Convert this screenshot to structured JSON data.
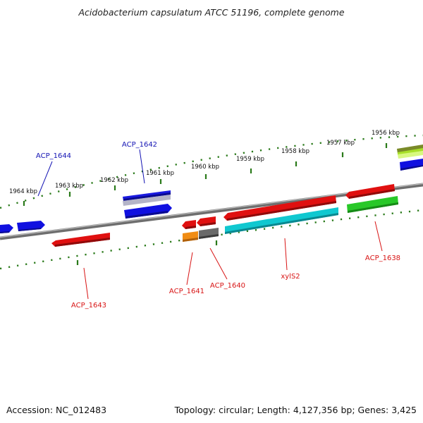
{
  "title": "Acidobacterium capsulatum ATCC 51196, complete genome",
  "footer": {
    "accession": "Accession: NC_012483",
    "summary": "Topology: circular; Length: 4,127,356 bp; Genes: 3,425"
  },
  "colors": {
    "backbone": "#7a7a7a",
    "tick": "#2a7a1a",
    "label_forward": "#1414b4",
    "label_reverse": "#d81414"
  },
  "position_ticks": [
    "1964 kbp",
    "1963 kbp",
    "1962 kbp",
    "1961 kbp",
    "1960 kbp",
    "1959 kbp",
    "1958 kbp",
    "1957 kbp",
    "1956 kbp"
  ],
  "gene_labels": [
    {
      "name": "ACP_1644",
      "strand": "forward"
    },
    {
      "name": "ACP_1642",
      "strand": "forward"
    },
    {
      "name": "ACP_1643",
      "strand": "reverse"
    },
    {
      "name": "ACP_1641",
      "strand": "reverse"
    },
    {
      "name": "ACP_1640",
      "strand": "reverse"
    },
    {
      "name": "xylS2",
      "strand": "reverse"
    },
    {
      "name": "ACP_1638",
      "strand": "reverse"
    }
  ]
}
